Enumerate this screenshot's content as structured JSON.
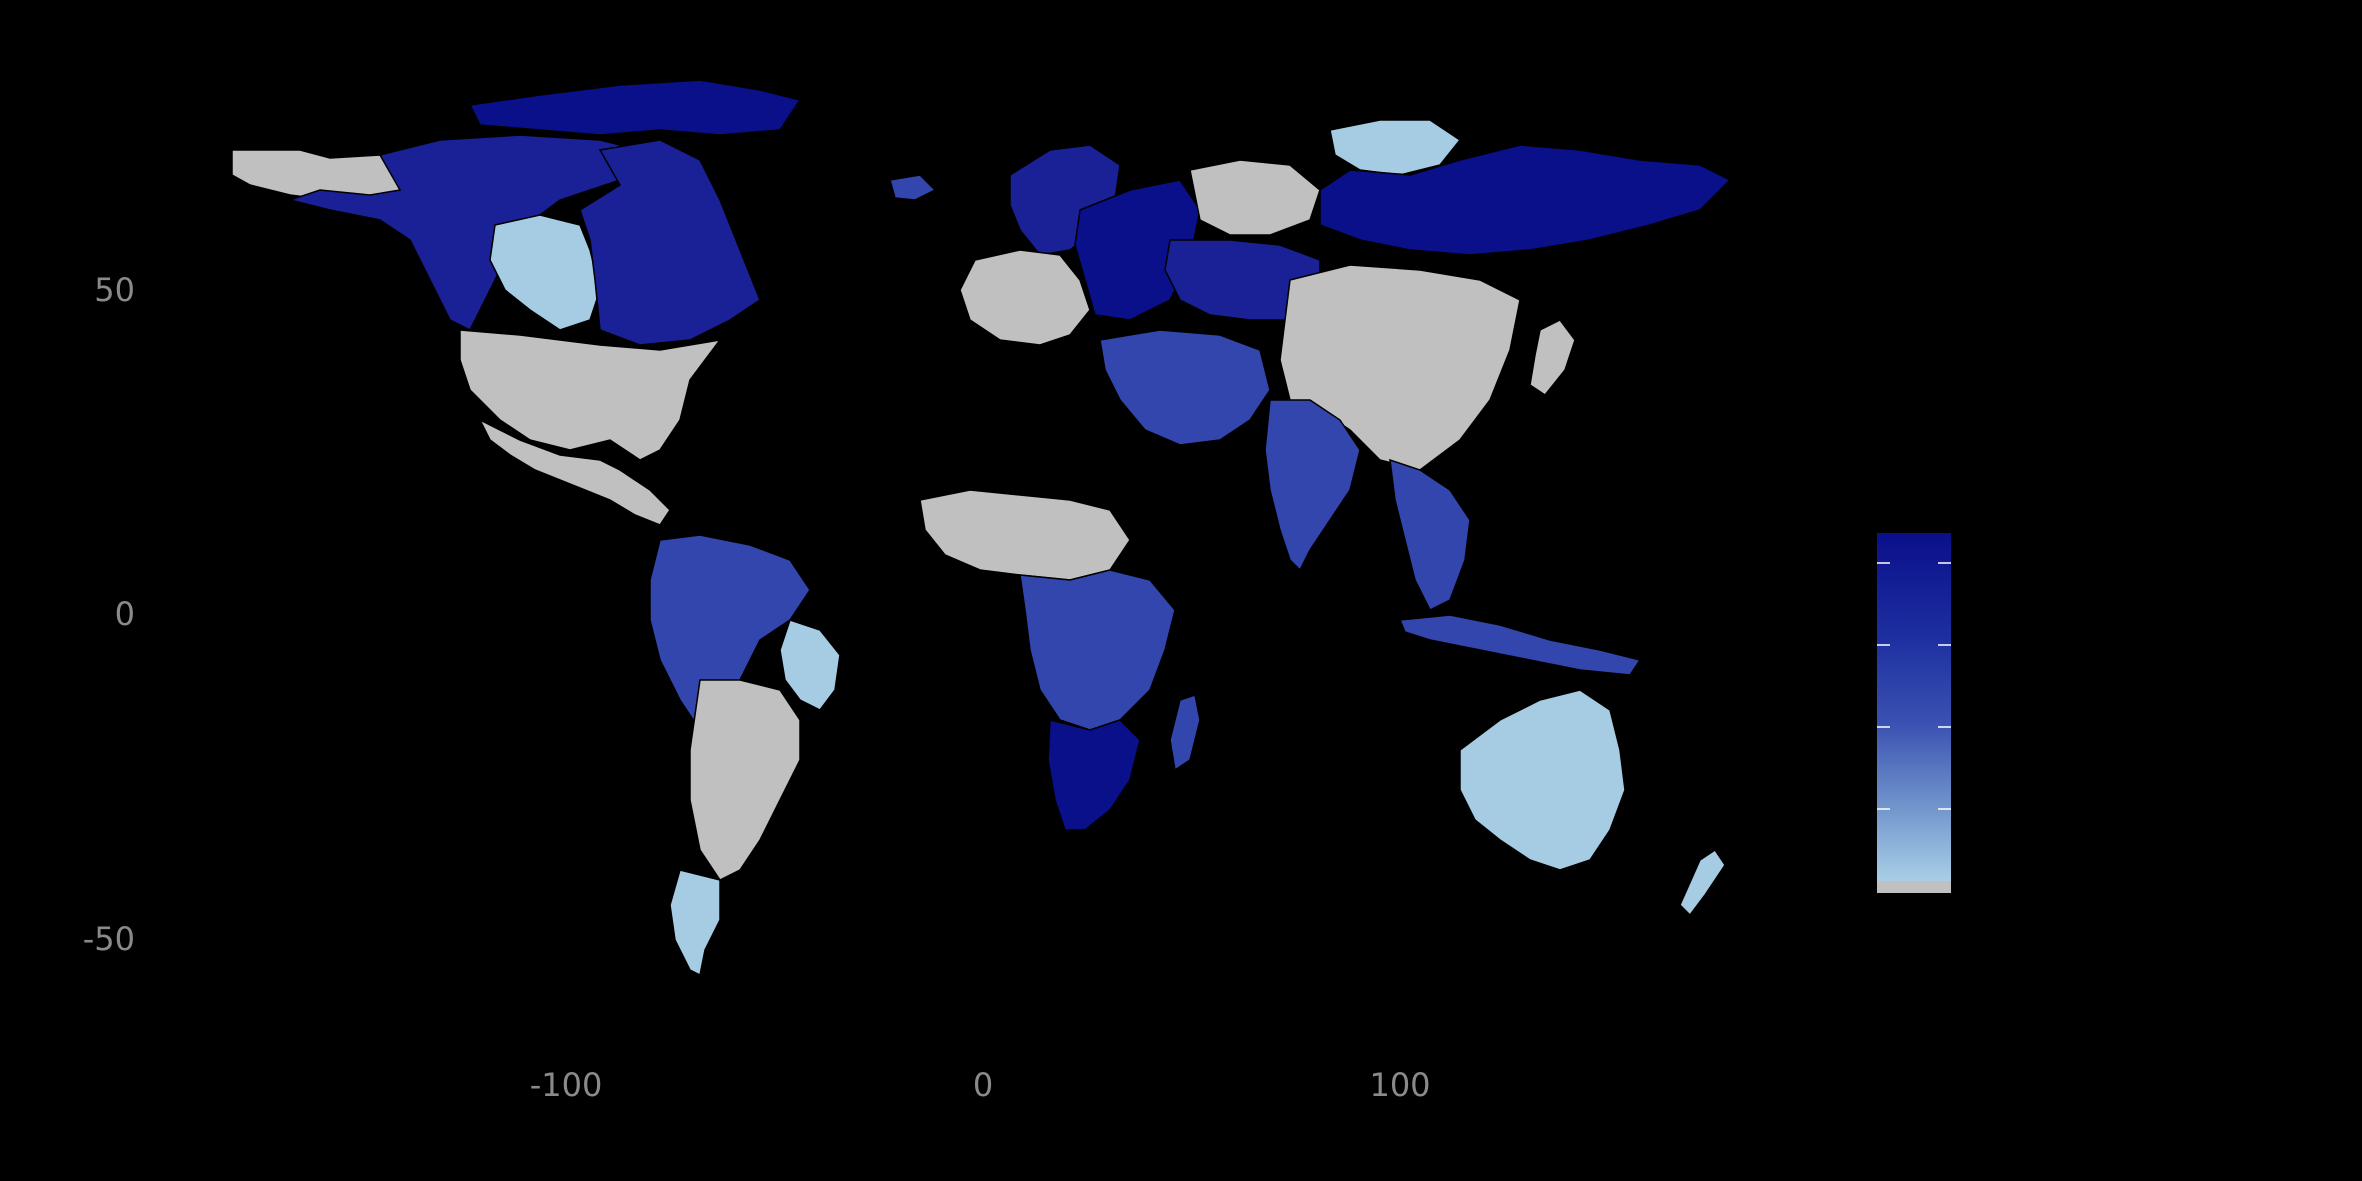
{
  "chart_data": {
    "type": "choropleth-map",
    "projection": "equirectangular",
    "x_axis": {
      "ticks": [
        -100,
        0,
        100
      ],
      "tick_labels": [
        "-100",
        "0",
        "100"
      ],
      "range": [
        -180,
        190
      ]
    },
    "y_axis": {
      "ticks": [
        50,
        0,
        -50
      ],
      "tick_labels": [
        "50",
        "0",
        "-50"
      ],
      "range": [
        -70,
        90
      ]
    },
    "background": "#000000",
    "grid": false,
    "legend": {
      "type": "colorbar",
      "placement": "right",
      "tick_labels_visible": false,
      "tick_count": 4,
      "colors": [
        "#0a0f8a",
        "#1a2aa0",
        "#3a4fb0",
        "#6a8ac8",
        "#a6cce4"
      ],
      "na_color": "#c0c0c0"
    },
    "color_classes": {
      "darkest": "#0a0f8a",
      "dark": "#1a2096",
      "medium": "#3346ad",
      "light": "#a6cce4",
      "na": "#c0c0c0"
    },
    "regions": [
      {
        "name": "Alaska",
        "class": "na"
      },
      {
        "name": "Northwest Canada",
        "class": "dark"
      },
      {
        "name": "Central Canada",
        "class": "light"
      },
      {
        "name": "Eastern Canada",
        "class": "dark"
      },
      {
        "name": "Northern Canada Islands",
        "class": "darkest"
      },
      {
        "name": "United States",
        "class": "na"
      },
      {
        "name": "Mexico and Central America",
        "class": "na"
      },
      {
        "name": "Northern South America",
        "class": "medium"
      },
      {
        "name": "Brazil East",
        "class": "light"
      },
      {
        "name": "Central South America",
        "class": "na"
      },
      {
        "name": "Southern South America",
        "class": "light"
      },
      {
        "name": "Iceland",
        "class": "medium"
      },
      {
        "name": "Scandinavia",
        "class": "dark"
      },
      {
        "name": "Western Europe",
        "class": "na"
      },
      {
        "name": "Eastern Europe",
        "class": "darkest"
      },
      {
        "name": "West Siberia",
        "class": "na"
      },
      {
        "name": "North Siberia",
        "class": "light"
      },
      {
        "name": "East Siberia",
        "class": "darkest"
      },
      {
        "name": "Central Asia",
        "class": "dark"
      },
      {
        "name": "China and Mongolia",
        "class": "na"
      },
      {
        "name": "Middle East",
        "class": "medium"
      },
      {
        "name": "Indian Subcontinent",
        "class": "medium"
      },
      {
        "name": "Southeast Asia",
        "class": "medium"
      },
      {
        "name": "Japan",
        "class": "na"
      },
      {
        "name": "West Africa",
        "class": "na"
      },
      {
        "name": "Central and East Africa",
        "class": "medium"
      },
      {
        "name": "Southern Africa",
        "class": "darkest"
      },
      {
        "name": "Madagascar",
        "class": "medium"
      },
      {
        "name": "Indonesia",
        "class": "medium"
      },
      {
        "name": "Australia",
        "class": "light"
      },
      {
        "name": "New Zealand",
        "class": "light"
      }
    ]
  }
}
